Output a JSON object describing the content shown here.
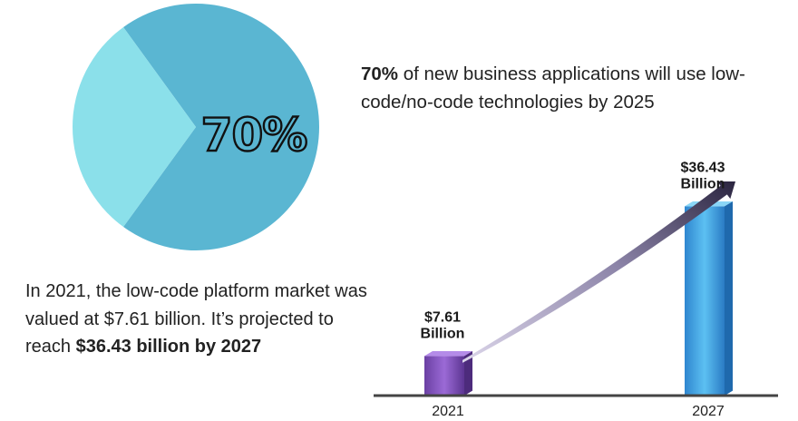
{
  "headline": {
    "bold": "70%",
    "text": " of new business applications  will use low-code/no-code technologies by 2025"
  },
  "market": {
    "text": "In 2021, the low-code platform market was valued at $7.61 billion. It’s projected to reach ",
    "bold": "$36.43 billion by 2027"
  },
  "chart_data": [
    {
      "type": "pie",
      "values": [
        70,
        30
      ],
      "label": "70%",
      "colors": [
        "#5ab6d2",
        "#8be0ea"
      ]
    },
    {
      "type": "bar",
      "categories": [
        "2021",
        "2027"
      ],
      "values": [
        7.61,
        36.43
      ],
      "unit": "Billion",
      "value_labels": [
        [
          "$7.61",
          "Billion"
        ],
        [
          "$36.43",
          "Billion"
        ]
      ],
      "colors": [
        "#7f4db8",
        "#3d9fe0"
      ]
    }
  ]
}
